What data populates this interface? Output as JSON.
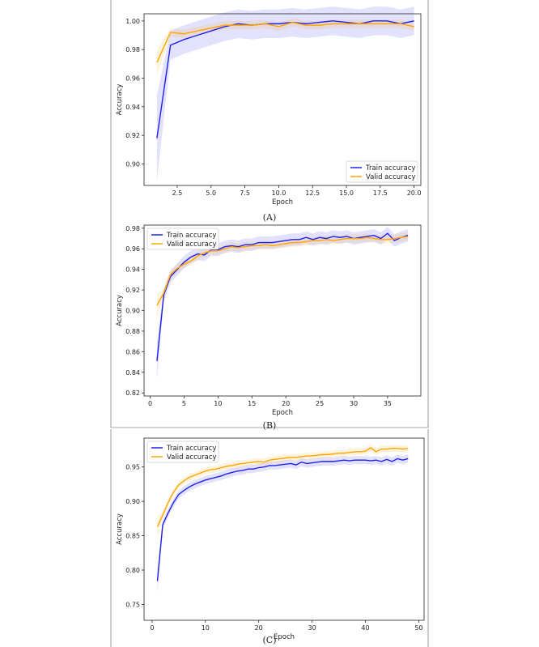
{
  "captions": [
    "(A)",
    "(B)",
    "(C)"
  ],
  "chart_data": [
    {
      "type": "line",
      "title": "",
      "xlabel": "Epoch",
      "ylabel": "Accuracy",
      "xlim": [
        0.05,
        20.5
      ],
      "ylim": [
        0.885,
        1.005
      ],
      "xticks": [
        2.5,
        5.0,
        7.5,
        10.0,
        12.5,
        15.0,
        17.5,
        20.0
      ],
      "xtick_labels": [
        "2.5",
        "5.0",
        "7.5",
        "10.0",
        "12.5",
        "15.0",
        "17.5",
        "20.0"
      ],
      "yticks": [
        0.9,
        0.92,
        0.94,
        0.96,
        0.98,
        1.0
      ],
      "ytick_labels": [
        "0.90",
        "0.92",
        "0.94",
        "0.96",
        "0.98",
        "1.00"
      ],
      "legend": "bottom-right",
      "grid": false,
      "x": [
        1,
        2,
        3,
        4,
        5,
        6,
        7,
        8,
        9,
        10,
        11,
        12,
        13,
        14,
        15,
        16,
        17,
        18,
        19,
        20
      ],
      "series": [
        {
          "name": "Train accuracy",
          "color": "#2020ee",
          "values": [
            0.918,
            0.983,
            0.987,
            0.99,
            0.993,
            0.996,
            0.998,
            0.997,
            0.998,
            0.998,
            0.999,
            0.998,
            0.999,
            1.0,
            0.999,
            0.998,
            1.0,
            1.0,
            0.998,
            1.0
          ],
          "band": 0.01
        },
        {
          "name": "Valid accuracy",
          "color": "#ffa500",
          "values": [
            0.971,
            0.992,
            0.991,
            0.993,
            0.995,
            0.997,
            0.997,
            0.997,
            0.998,
            0.996,
            0.999,
            0.997,
            0.997,
            0.998,
            0.998,
            0.998,
            0.998,
            0.998,
            0.998,
            0.996
          ],
          "band": 0.003
        }
      ]
    },
    {
      "type": "line",
      "title": "",
      "xlabel": "Epoch",
      "ylabel": "Accuracy",
      "xlim": [
        -0.9,
        39.9
      ],
      "ylim": [
        0.817,
        0.983
      ],
      "xticks": [
        0,
        5,
        10,
        15,
        20,
        25,
        30,
        35
      ],
      "xtick_labels": [
        "0",
        "5",
        "10",
        "15",
        "20",
        "25",
        "30",
        "35"
      ],
      "yticks": [
        0.82,
        0.84,
        0.86,
        0.88,
        0.9,
        0.92,
        0.94,
        0.96,
        0.98
      ],
      "ytick_labels": [
        "0.82",
        "0.84",
        "0.86",
        "0.88",
        "0.90",
        "0.92",
        "0.94",
        "0.96",
        "0.98"
      ],
      "legend": "top-left",
      "grid": false,
      "x": [
        1,
        2,
        3,
        4,
        5,
        6,
        7,
        8,
        9,
        10,
        11,
        12,
        13,
        14,
        15,
        16,
        17,
        18,
        19,
        20,
        21,
        22,
        23,
        24,
        25,
        26,
        27,
        28,
        29,
        30,
        31,
        32,
        33,
        34,
        35,
        36,
        37,
        38
      ],
      "series": [
        {
          "name": "Train accuracy",
          "color": "#2020ee",
          "values": [
            0.851,
            0.915,
            0.933,
            0.94,
            0.947,
            0.952,
            0.955,
            0.954,
            0.959,
            0.959,
            0.962,
            0.963,
            0.962,
            0.964,
            0.964,
            0.966,
            0.966,
            0.966,
            0.967,
            0.968,
            0.969,
            0.969,
            0.971,
            0.969,
            0.971,
            0.97,
            0.972,
            0.971,
            0.972,
            0.97,
            0.971,
            0.972,
            0.973,
            0.97,
            0.975,
            0.968,
            0.971,
            0.973
          ],
          "band": 0.006
        },
        {
          "name": "Valid accuracy",
          "color": "#ffa500",
          "values": [
            0.905,
            0.917,
            0.935,
            0.941,
            0.945,
            0.948,
            0.953,
            0.956,
            0.958,
            0.958,
            0.96,
            0.962,
            0.961,
            0.962,
            0.963,
            0.963,
            0.964,
            0.963,
            0.964,
            0.965,
            0.966,
            0.966,
            0.967,
            0.968,
            0.968,
            0.969,
            0.968,
            0.969,
            0.97,
            0.97,
            0.97,
            0.971,
            0.97,
            0.969,
            0.969,
            0.97,
            0.971,
            0.972
          ],
          "band": 0.004
        }
      ]
    },
    {
      "type": "line",
      "title": "",
      "xlabel": "Epoch",
      "ylabel": "Accuracy",
      "xlim": [
        -1.5,
        51.0
      ],
      "ylim": [
        0.727,
        0.992
      ],
      "xticks": [
        0,
        10,
        20,
        30,
        40,
        50
      ],
      "xtick_labels": [
        "0",
        "10",
        "20",
        "30",
        "40",
        "50"
      ],
      "yticks": [
        0.75,
        0.8,
        0.85,
        0.9,
        0.95
      ],
      "ytick_labels": [
        "0.75",
        "0.80",
        "0.85",
        "0.90",
        "0.95"
      ],
      "legend": "top-left",
      "grid": false,
      "x": [
        1,
        2,
        3,
        4,
        5,
        6,
        7,
        8,
        9,
        10,
        11,
        12,
        13,
        14,
        15,
        16,
        17,
        18,
        19,
        20,
        21,
        22,
        23,
        24,
        25,
        26,
        27,
        28,
        29,
        30,
        31,
        32,
        33,
        34,
        35,
        36,
        37,
        38,
        39,
        40,
        41,
        42,
        43,
        44,
        45,
        46,
        47,
        48
      ],
      "series": [
        {
          "name": "Train accuracy",
          "color": "#2020ee",
          "values": [
            0.784,
            0.866,
            0.883,
            0.898,
            0.91,
            0.916,
            0.921,
            0.925,
            0.928,
            0.931,
            0.933,
            0.935,
            0.937,
            0.94,
            0.942,
            0.944,
            0.945,
            0.947,
            0.947,
            0.949,
            0.95,
            0.952,
            0.952,
            0.953,
            0.954,
            0.955,
            0.953,
            0.957,
            0.955,
            0.956,
            0.957,
            0.958,
            0.958,
            0.958,
            0.959,
            0.96,
            0.959,
            0.96,
            0.96,
            0.96,
            0.959,
            0.96,
            0.958,
            0.961,
            0.958,
            0.962,
            0.96,
            0.962
          ],
          "band": 0.006
        },
        {
          "name": "Valid accuracy",
          "color": "#ffa500",
          "values": [
            0.863,
            0.88,
            0.898,
            0.913,
            0.924,
            0.93,
            0.935,
            0.938,
            0.941,
            0.944,
            0.946,
            0.947,
            0.949,
            0.951,
            0.952,
            0.954,
            0.955,
            0.956,
            0.957,
            0.958,
            0.957,
            0.96,
            0.961,
            0.962,
            0.963,
            0.964,
            0.964,
            0.965,
            0.966,
            0.966,
            0.967,
            0.968,
            0.968,
            0.969,
            0.97,
            0.97,
            0.971,
            0.972,
            0.972,
            0.973,
            0.978,
            0.972,
            0.976,
            0.976,
            0.977,
            0.977,
            0.976,
            0.977
          ],
          "band": 0.005
        }
      ]
    }
  ]
}
